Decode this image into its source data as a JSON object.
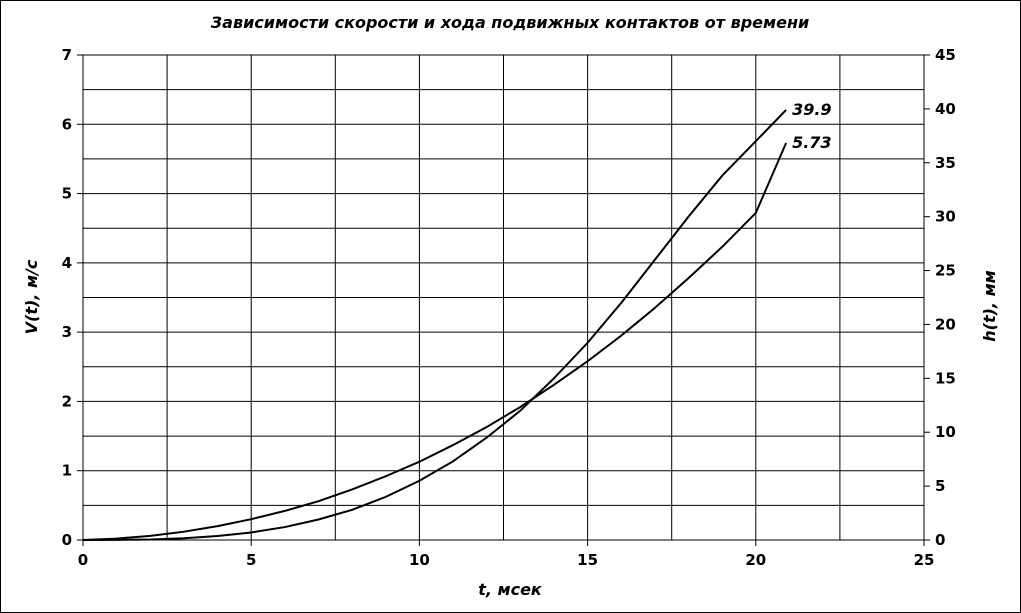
{
  "chart_data": {
    "type": "line",
    "title": "Зависимости скорости и хода подвижных контактов от времени",
    "xlabel": "t, мсек",
    "ylabel_left": "V(t), м/с",
    "ylabel_right": "h(t), мм",
    "xlim": [
      0,
      25
    ],
    "ylim_left": [
      0,
      7
    ],
    "ylim_right": [
      0,
      45
    ],
    "x_ticks": [
      "0",
      "5",
      "10",
      "15",
      "20",
      "25"
    ],
    "y_left_ticks": [
      "0",
      "1",
      "2",
      "3",
      "4",
      "5",
      "6",
      "7"
    ],
    "y_right_ticks": [
      "0",
      "5",
      "10",
      "15",
      "20",
      "25",
      "30",
      "35",
      "40",
      "45"
    ],
    "grid": true,
    "series": [
      {
        "axis": "left",
        "end_label": "5.73",
        "x": [
          0,
          1,
          2,
          3,
          4,
          5,
          6,
          7,
          8,
          9,
          10,
          11,
          12,
          13,
          14,
          15,
          16,
          17,
          18,
          19,
          20,
          20.9
        ],
        "y": [
          0,
          0.02,
          0.06,
          0.12,
          0.2,
          0.3,
          0.42,
          0.56,
          0.73,
          0.92,
          1.13,
          1.37,
          1.63,
          1.92,
          2.24,
          2.58,
          2.95,
          3.35,
          3.78,
          4.23,
          4.72,
          5.73
        ]
      },
      {
        "axis": "right",
        "end_label": "39.9",
        "x": [
          0,
          1,
          2,
          3,
          4,
          5,
          6,
          7,
          8,
          9,
          10,
          11,
          12,
          13,
          14,
          15,
          16,
          17,
          18,
          19,
          20,
          20.9
        ],
        "y": [
          0,
          0.01,
          0.05,
          0.16,
          0.37,
          0.7,
          1.2,
          1.9,
          2.8,
          4.0,
          5.5,
          7.3,
          9.5,
          12.0,
          15.0,
          18.3,
          22.0,
          26.0,
          30.0,
          33.8,
          37.0,
          39.9
        ]
      }
    ]
  }
}
